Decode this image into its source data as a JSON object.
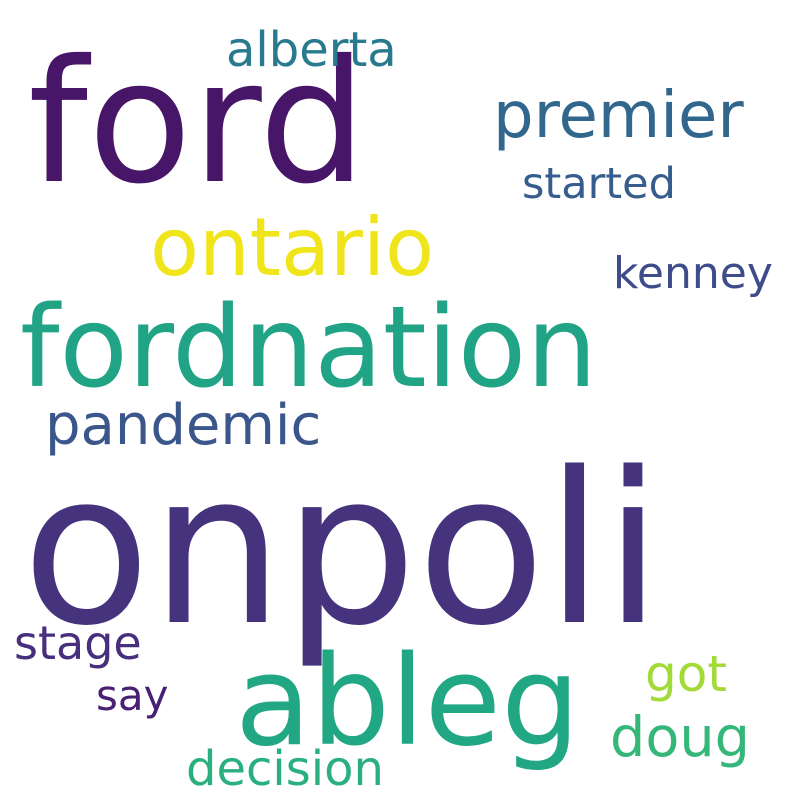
{
  "words": [
    {
      "id": "onpoli",
      "text": "onpoli",
      "color": "#46337e"
    },
    {
      "id": "ford",
      "text": "ford",
      "color": "#481668"
    },
    {
      "id": "fordnation",
      "text": "fordnation",
      "color": "#21a386"
    },
    {
      "id": "ableg",
      "text": "ableg",
      "color": "#22a785"
    },
    {
      "id": "ontario",
      "text": "ontario",
      "color": "#f0e51a"
    },
    {
      "id": "premier",
      "text": "premier",
      "color": "#31668d"
    },
    {
      "id": "pandemic",
      "text": "pandemic",
      "color": "#3a568b"
    },
    {
      "id": "alberta",
      "text": "alberta",
      "color": "#297a8e"
    },
    {
      "id": "started",
      "text": "started",
      "color": "#365d8d"
    },
    {
      "id": "kenney",
      "text": "kenney",
      "color": "#3e4c8a"
    },
    {
      "id": "stage",
      "text": "stage",
      "color": "#472f7d"
    },
    {
      "id": "got",
      "text": "got",
      "color": "#a2da37"
    },
    {
      "id": "doug",
      "text": "doug",
      "color": "#35b779"
    },
    {
      "id": "say",
      "text": "say",
      "color": "#482173"
    },
    {
      "id": "decision",
      "text": "decision",
      "color": "#2ab07f"
    }
  ]
}
